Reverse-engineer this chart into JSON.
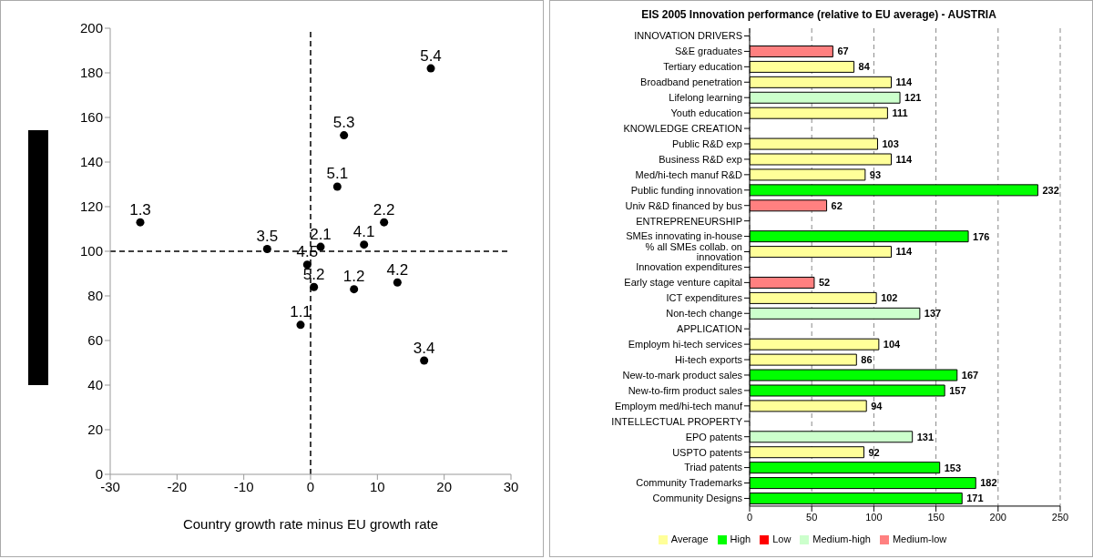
{
  "chart_data": [
    {
      "type": "scatter",
      "xlabel": "Country growth rate minus EU growth rate",
      "xlim": [
        -30,
        30
      ],
      "xticks": [
        -30,
        -20,
        -10,
        0,
        10,
        20,
        30
      ],
      "ylim": [
        0,
        200
      ],
      "yticks": [
        0,
        20,
        40,
        60,
        80,
        100,
        120,
        140,
        160,
        180,
        200
      ],
      "grid": false,
      "marker": "circle",
      "series": [
        {
          "name": "5.4",
          "color": "#000000",
          "x": [
            18
          ],
          "values": [
            182
          ]
        },
        {
          "name": "5.3",
          "color": "#000000",
          "x": [
            5
          ],
          "values": [
            152
          ]
        },
        {
          "name": "5.1",
          "color": "#000000",
          "x": [
            4
          ],
          "values": [
            129
          ]
        },
        {
          "name": "2.2",
          "color": "#000000",
          "x": [
            11
          ],
          "values": [
            113
          ]
        },
        {
          "name": "1.3",
          "color": "#000000",
          "x": [
            -25.5
          ],
          "values": [
            113
          ]
        },
        {
          "name": "3.5",
          "color": "#000000",
          "x": [
            -6.5
          ],
          "values": [
            101
          ]
        },
        {
          "name": "2.1",
          "color": "#000000",
          "x": [
            1.5
          ],
          "values": [
            102
          ]
        },
        {
          "name": "4.1",
          "color": "#000000",
          "x": [
            8
          ],
          "values": [
            103
          ]
        },
        {
          "name": "4.5",
          "color": "#000000",
          "x": [
            -0.5
          ],
          "values": [
            94
          ]
        },
        {
          "name": "5.2",
          "color": "#000000",
          "x": [
            0.5
          ],
          "values": [
            84
          ]
        },
        {
          "name": "1.2",
          "color": "#000000",
          "x": [
            6.5
          ],
          "values": [
            83
          ]
        },
        {
          "name": "4.2",
          "color": "#000000",
          "x": [
            13
          ],
          "values": [
            86
          ]
        },
        {
          "name": "1.1",
          "color": "#000000",
          "x": [
            -1.5
          ],
          "values": [
            67
          ]
        },
        {
          "name": "3.4",
          "color": "#000000",
          "x": [
            17
          ],
          "values": [
            51
          ]
        }
      ],
      "ref_lines": [
        {
          "axis": "x",
          "value": 0,
          "line_style": "dashed",
          "color": "#000000"
        },
        {
          "axis": "y",
          "value": 100,
          "line_style": "dashed",
          "color": "#000000"
        }
      ]
    },
    {
      "type": "bar",
      "orientation": "horizontal",
      "stacked": true,
      "title": "EIS 2005 Innovation performance (relative to EU average) - AUSTRIA",
      "xlim": [
        0,
        250
      ],
      "xticks": [
        0,
        50,
        100,
        150,
        200,
        250
      ],
      "grid": "x",
      "legend": "bottom",
      "data_labels": true,
      "categories": [
        "INNOVATION DRIVERS",
        "S&E graduates",
        "Tertiary education",
        "Broadband penetration",
        "Lifelong learning",
        "Youth education",
        "KNOWLEDGE CREATION",
        "Public R&D exp",
        "Business R&D exp",
        "Med/hi-tech manuf R&D",
        "Public funding innovation",
        "Univ R&D financed by bus",
        "ENTREPRENEURSHIP",
        "SMEs innovating in-house",
        "% all SMEs collab. on innovation",
        "Innovation expenditures",
        "Early stage venture capital",
        "ICT expenditures",
        "Non-tech change",
        "APPLICATION",
        "Employm hi-tech services",
        "Hi-tech exports",
        "New-to-mark product sales",
        "New-to-firm product sales",
        "Employm med/hi-tech manuf",
        "INTELLECTUAL PROPERTY",
        "EPO patents",
        "USPTO patents",
        "Triad patents",
        "Community Trademarks",
        "Community Designs"
      ],
      "series": [
        {
          "name": "Low",
          "color": "#ff0000",
          "values": [
            null,
            null,
            null,
            null,
            null,
            null,
            null,
            null,
            null,
            null,
            null,
            null,
            null,
            null,
            null,
            null,
            null,
            null,
            null,
            null,
            null,
            null,
            null,
            null,
            null,
            null,
            null,
            null,
            null,
            null,
            null
          ]
        },
        {
          "name": "Medium-low",
          "color": "#ff8080",
          "values": [
            null,
            67,
            null,
            null,
            null,
            null,
            null,
            null,
            null,
            null,
            null,
            62,
            null,
            null,
            null,
            null,
            52,
            null,
            null,
            null,
            null,
            null,
            null,
            null,
            null,
            null,
            null,
            null,
            null,
            null,
            null
          ]
        },
        {
          "name": "Average",
          "color": "#ffff99",
          "values": [
            null,
            null,
            84,
            114,
            null,
            111,
            null,
            103,
            114,
            93,
            null,
            null,
            null,
            null,
            114,
            null,
            null,
            102,
            null,
            null,
            104,
            86,
            null,
            null,
            94,
            null,
            null,
            92,
            null,
            null,
            null
          ]
        },
        {
          "name": "Medium-high",
          "color": "#ccffcc",
          "values": [
            null,
            null,
            null,
            null,
            121,
            null,
            null,
            null,
            null,
            null,
            null,
            null,
            null,
            null,
            null,
            null,
            null,
            null,
            137,
            null,
            null,
            null,
            null,
            null,
            null,
            null,
            131,
            null,
            null,
            null,
            null
          ]
        },
        {
          "name": "High",
          "color": "#00ff00",
          "values": [
            null,
            null,
            null,
            null,
            null,
            null,
            null,
            null,
            null,
            null,
            232,
            null,
            null,
            176,
            null,
            null,
            null,
            null,
            null,
            null,
            null,
            null,
            167,
            157,
            null,
            null,
            null,
            null,
            153,
            182,
            171
          ]
        }
      ]
    }
  ]
}
